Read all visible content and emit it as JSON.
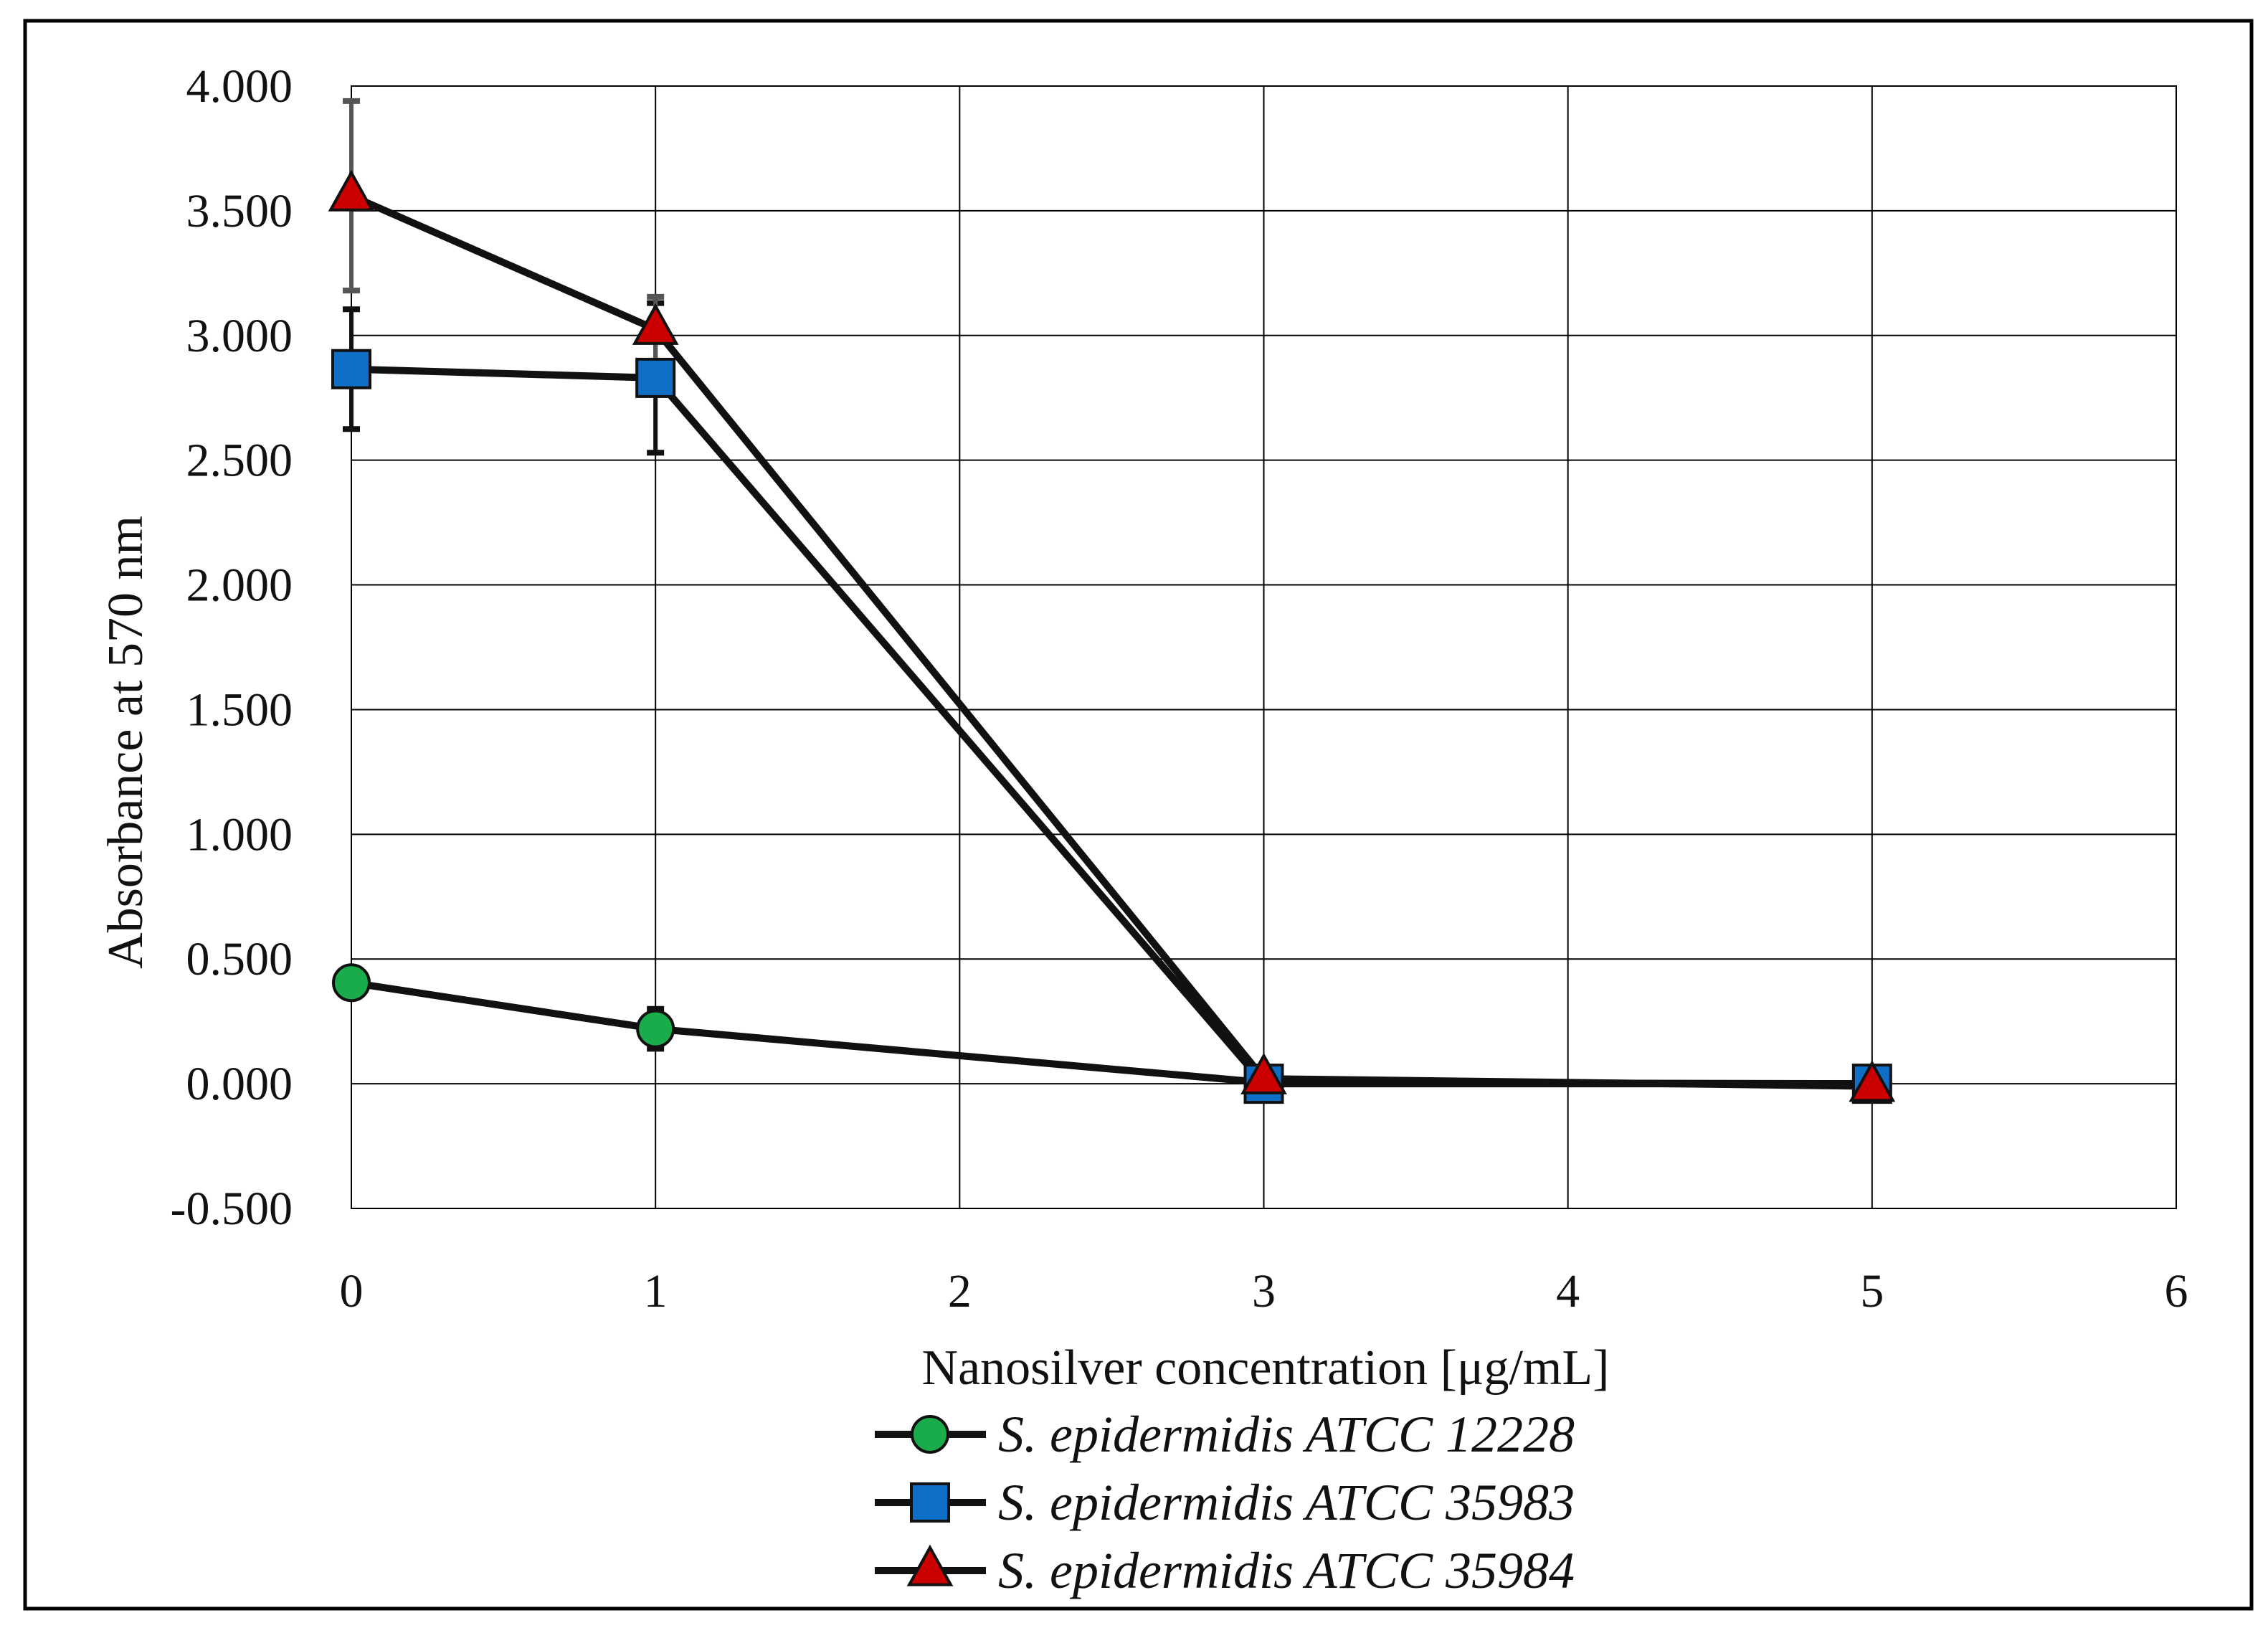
{
  "chart_data": {
    "type": "line",
    "title": "",
    "xlabel": "Nanosilver concentration [μg/mL]",
    "ylabel": "Absorbance at 570 nm",
    "xlim": [
      0,
      6
    ],
    "ylim": [
      -0.5,
      4.0
    ],
    "x_ticks": [
      0,
      1,
      2,
      3,
      4,
      5,
      6
    ],
    "x_tick_labels": [
      "0",
      "1",
      "2",
      "3",
      "4",
      "5",
      "6"
    ],
    "y_ticks": [
      -0.5,
      0.0,
      0.5,
      1.0,
      1.5,
      2.0,
      2.5,
      3.0,
      3.5,
      4.0
    ],
    "y_tick_labels": [
      "-0.500",
      "0.000",
      "0.500",
      "1.000",
      "1.500",
      "2.000",
      "2.500",
      "3.000",
      "3.500",
      "4.000"
    ],
    "grid": true,
    "legend_position": "bottom",
    "series": [
      {
        "name": "S. epidermidis ATCC 12228",
        "marker": "circle",
        "color": "#1aab4b",
        "x": [
          0,
          1,
          3,
          5
        ],
        "y": [
          0.405,
          0.22,
          0.005,
          0.0
        ],
        "err": [
          0.02,
          0.08,
          0.005,
          0.005
        ]
      },
      {
        "name": "S. epidermidis ATCC 35983",
        "marker": "square",
        "color": "#0f6fc6",
        "x": [
          0,
          1,
          3,
          5
        ],
        "y": [
          2.865,
          2.83,
          0.0,
          0.0
        ],
        "err": [
          0.24,
          0.3,
          0.01,
          0.005
        ]
      },
      {
        "name": "S. epidermidis ATCC 35984",
        "marker": "triangle",
        "color": "#cc0000",
        "x": [
          0,
          1,
          3,
          5
        ],
        "y": [
          3.56,
          3.025,
          0.02,
          -0.01
        ],
        "err": [
          0.38,
          0.13,
          0.01,
          0.005
        ]
      }
    ],
    "line_color": "#111111"
  }
}
